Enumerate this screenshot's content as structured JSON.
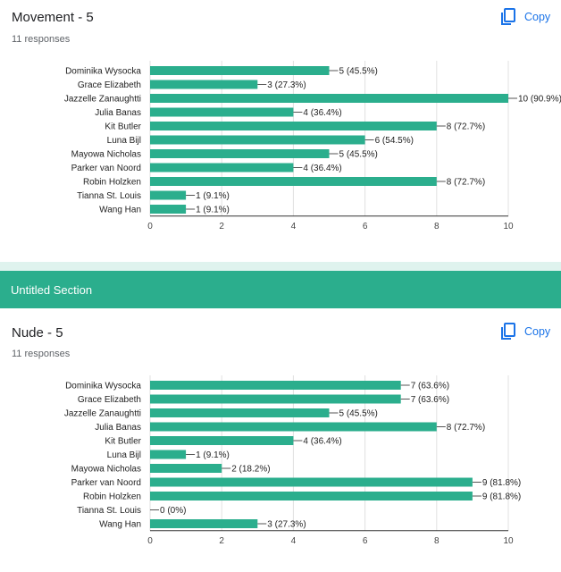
{
  "sections": [
    {
      "title": "Movement - 5",
      "responses": "11 responses",
      "copy_label": "Copy",
      "copy_icon": "copy-icon"
    },
    {
      "title": "Nude - 5",
      "responses": "11 responses",
      "copy_label": "Copy",
      "copy_icon": "copy-icon"
    }
  ],
  "divider": {
    "title": "Untitled Section"
  },
  "colors": {
    "bar": "#2bae8d",
    "accent": "#1a73e8",
    "section": "#2bae8d",
    "grid": "#e0e0e0"
  },
  "chart_data": [
    {
      "type": "bar",
      "orientation": "horizontal",
      "categories": [
        "Dominika Wysocka",
        "Grace Elizabeth",
        "Jazzelle Zanaughtti",
        "Julia Banas",
        "Kit Butler",
        "Luna Bijl",
        "Mayowa Nicholas",
        "Parker van Noord",
        "Robin Holzken",
        "Tianna St. Louis",
        "Wang Han"
      ],
      "values": [
        5,
        3,
        10,
        4,
        8,
        6,
        5,
        4,
        8,
        1,
        1
      ],
      "data_labels": [
        "5 (45.5%)",
        "3 (27.3%)",
        "10 (90.9%)",
        "4 (36.4%)",
        "8 (72.7%)",
        "6 (54.5%)",
        "5 (45.5%)",
        "4 (36.4%)",
        "8 (72.7%)",
        "1 (9.1%)",
        "1 (9.1%)"
      ],
      "xlim": [
        0,
        10
      ],
      "xticks": [
        "0",
        "2",
        "4",
        "6",
        "8",
        "10"
      ],
      "grid": true
    },
    {
      "type": "bar",
      "orientation": "horizontal",
      "categories": [
        "Dominika Wysocka",
        "Grace Elizabeth",
        "Jazzelle Zanaughtti",
        "Julia Banas",
        "Kit Butler",
        "Luna Bijl",
        "Mayowa Nicholas",
        "Parker van Noord",
        "Robin Holzken",
        "Tianna St. Louis",
        "Wang Han"
      ],
      "values": [
        7,
        7,
        5,
        8,
        4,
        1,
        2,
        9,
        9,
        0,
        3
      ],
      "data_labels": [
        "7 (63.6%)",
        "7 (63.6%)",
        "5 (45.5%)",
        "8 (72.7%)",
        "4 (36.4%)",
        "1 (9.1%)",
        "2 (18.2%)",
        "9 (81.8%)",
        "9 (81.8%)",
        "0 (0%)",
        "3 (27.3%)"
      ],
      "xlim": [
        0,
        10
      ],
      "xticks": [
        "0",
        "2",
        "4",
        "6",
        "8",
        "10"
      ],
      "grid": true
    }
  ]
}
